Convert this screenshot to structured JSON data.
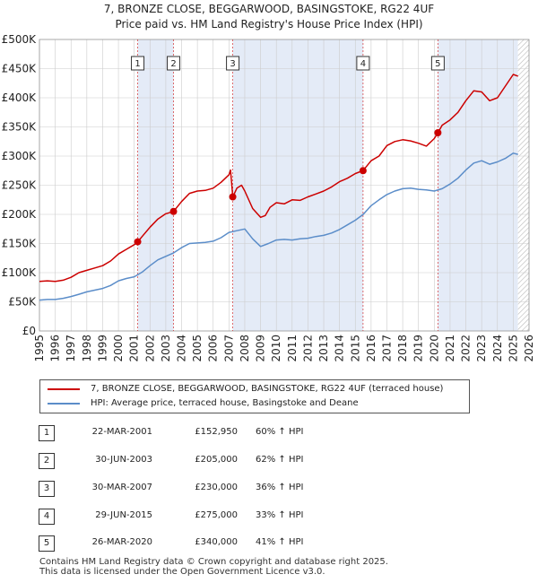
{
  "header": {
    "title": "7, BRONZE CLOSE, BEGGARWOOD, BASINGSTOKE, RG22 4UF",
    "subtitle": "Price paid vs. HM Land Registry's House Price Index (HPI)"
  },
  "colors": {
    "property": "#cc0000",
    "hpi": "#5b8dc9",
    "band": "#e4ebf7",
    "grid": "#cccccc"
  },
  "chart_data": {
    "type": "line",
    "title": "7, BRONZE CLOSE, BEGGARWOOD, BASINGSTOKE, RG22 4UF",
    "subtitle": "Price paid vs. HM Land Registry's House Price Index (HPI)",
    "xlabel": "",
    "ylabel": "",
    "xlim": [
      1995,
      2026
    ],
    "ylim": [
      0,
      500000
    ],
    "x_ticks": [
      1995,
      1996,
      1997,
      1998,
      1999,
      2000,
      2001,
      2002,
      2003,
      2004,
      2005,
      2006,
      2007,
      2008,
      2009,
      2010,
      2011,
      2012,
      2013,
      2014,
      2015,
      2016,
      2017,
      2018,
      2019,
      2020,
      2021,
      2022,
      2023,
      2024,
      2025,
      2026
    ],
    "y_ticks": [
      {
        "value": 0,
        "label": "£0"
      },
      {
        "value": 50000,
        "label": "£50K"
      },
      {
        "value": 100000,
        "label": "£100K"
      },
      {
        "value": 150000,
        "label": "£150K"
      },
      {
        "value": 200000,
        "label": "£200K"
      },
      {
        "value": 250000,
        "label": "£250K"
      },
      {
        "value": 300000,
        "label": "£300K"
      },
      {
        "value": 350000,
        "label": "£350K"
      },
      {
        "value": 400000,
        "label": "£400K"
      },
      {
        "value": 450000,
        "label": "£450K"
      },
      {
        "value": 500000,
        "label": "£500K"
      }
    ],
    "grid": true,
    "shaded_ranges": [
      [
        2001.22,
        2003.49
      ],
      [
        2007.24,
        2015.49
      ],
      [
        2020.23,
        2025.3
      ]
    ],
    "hatched_range": [
      2025.3,
      2026
    ],
    "series": [
      {
        "name": "7, BRONZE CLOSE, BEGGARWOOD, BASINGSTOKE, RG22 4UF (terraced house)",
        "color": "#cc0000",
        "x": [
          1995,
          1995.5,
          1996,
          1996.5,
          1997,
          1997.5,
          1998,
          1998.5,
          1999,
          1999.5,
          2000,
          2000.5,
          2001,
          2001.22,
          2001.5,
          2002,
          2002.5,
          2003,
          2003.49,
          2004,
          2004.5,
          2005,
          2005.5,
          2006,
          2006.5,
          2007,
          2007.1,
          2007.24,
          2007.5,
          2007.8,
          2008,
          2008.5,
          2009,
          2009.3,
          2009.6,
          2010,
          2010.5,
          2011,
          2011.5,
          2012,
          2012.5,
          2013,
          2013.5,
          2014,
          2014.5,
          2015,
          2015.49,
          2016,
          2016.5,
          2017,
          2017.5,
          2018,
          2018.5,
          2019,
          2019.5,
          2020,
          2020.23,
          2020.5,
          2021,
          2021.5,
          2022,
          2022.5,
          2023,
          2023.5,
          2024,
          2024.5,
          2025,
          2025.3
        ],
        "y": [
          85000,
          86000,
          85000,
          87000,
          92000,
          100000,
          104000,
          108000,
          112000,
          120000,
          132000,
          140000,
          148000,
          152950,
          162000,
          178000,
          192000,
          201000,
          205000,
          222000,
          236000,
          240000,
          241000,
          245000,
          255000,
          268000,
          276000,
          230000,
          245000,
          250000,
          240000,
          210000,
          195000,
          198000,
          212000,
          220000,
          218000,
          225000,
          224000,
          230000,
          235000,
          240000,
          247000,
          256000,
          262000,
          270000,
          275000,
          292000,
          300000,
          318000,
          325000,
          328000,
          326000,
          322000,
          317000,
          330000,
          340000,
          353000,
          362000,
          375000,
          395000,
          412000,
          410000,
          395000,
          400000,
          420000,
          440000,
          437000
        ]
      },
      {
        "name": "HPI: Average price, terraced house, Basingstoke and Deane",
        "color": "#5b8dc9",
        "x": [
          1995,
          1995.5,
          1996,
          1996.5,
          1997,
          1997.5,
          1998,
          1998.5,
          1999,
          1999.5,
          2000,
          2000.5,
          2001,
          2001.5,
          2002,
          2002.5,
          2003,
          2003.5,
          2004,
          2004.5,
          2005,
          2005.5,
          2006,
          2006.5,
          2007,
          2007.5,
          2008,
          2008.5,
          2009,
          2009.5,
          2010,
          2010.5,
          2011,
          2011.5,
          2012,
          2012.5,
          2013,
          2013.5,
          2014,
          2014.5,
          2015,
          2015.5,
          2016,
          2016.5,
          2017,
          2017.5,
          2018,
          2018.5,
          2019,
          2019.5,
          2020,
          2020.5,
          2021,
          2021.5,
          2022,
          2022.5,
          2023,
          2023.5,
          2024,
          2024.5,
          2025,
          2025.3
        ],
        "y": [
          53000,
          54000,
          54000,
          56000,
          59000,
          63000,
          67000,
          70000,
          73000,
          78000,
          86000,
          90000,
          93000,
          101000,
          112000,
          122000,
          128000,
          134000,
          143000,
          150000,
          151000,
          152000,
          154000,
          160000,
          169000,
          172000,
          175000,
          158000,
          145000,
          150000,
          156000,
          157000,
          156000,
          158000,
          159000,
          162000,
          164000,
          168000,
          174000,
          182000,
          190000,
          200000,
          215000,
          225000,
          234000,
          240000,
          244000,
          245000,
          243000,
          242000,
          240000,
          244000,
          252000,
          262000,
          276000,
          288000,
          292000,
          286000,
          290000,
          296000,
          305000,
          303000
        ]
      }
    ],
    "markers": [
      {
        "label": "1",
        "x": 2001.22,
        "y": 152950
      },
      {
        "label": "2",
        "x": 2003.49,
        "y": 205000
      },
      {
        "label": "3",
        "x": 2007.24,
        "y": 230000
      },
      {
        "label": "4",
        "x": 2015.49,
        "y": 275000
      },
      {
        "label": "5",
        "x": 2020.23,
        "y": 340000
      }
    ]
  },
  "legend": {
    "items": [
      {
        "label": "7, BRONZE CLOSE, BEGGARWOOD, BASINGSTOKE, RG22 4UF (terraced house)",
        "color": "#cc0000"
      },
      {
        "label": "HPI: Average price, terraced house, Basingstoke and Deane",
        "color": "#5b8dc9"
      }
    ]
  },
  "sales": [
    {
      "num": "1",
      "date": "22-MAR-2001",
      "price": "£152,950",
      "pct": "60% ↑ HPI"
    },
    {
      "num": "2",
      "date": "30-JUN-2003",
      "price": "£205,000",
      "pct": "62% ↑ HPI"
    },
    {
      "num": "3",
      "date": "30-MAR-2007",
      "price": "£230,000",
      "pct": "36% ↑ HPI"
    },
    {
      "num": "4",
      "date": "29-JUN-2015",
      "price": "£275,000",
      "pct": "33% ↑ HPI"
    },
    {
      "num": "5",
      "date": "26-MAR-2020",
      "price": "£340,000",
      "pct": "41% ↑ HPI"
    }
  ],
  "footer": {
    "line1": "Contains HM Land Registry data © Crown copyright and database right 2025.",
    "line2": "This data is licensed under the Open Government Licence v3.0."
  }
}
